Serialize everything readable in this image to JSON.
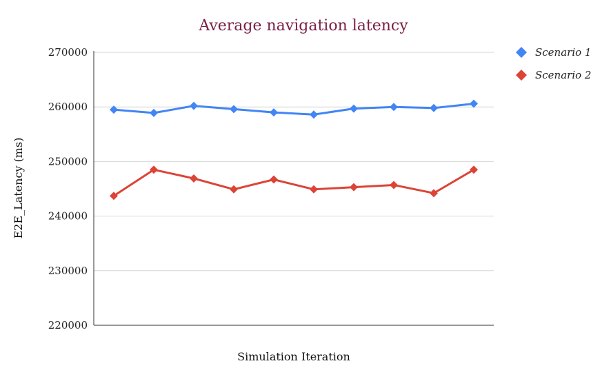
{
  "chart_data": {
    "type": "line",
    "title": "Average navigation latency",
    "xlabel": "Simulation Iteration",
    "ylabel": "E2E_Latency (ms)",
    "ylim": [
      220000,
      270000
    ],
    "yticks": [
      "270000",
      "260000",
      "250000",
      "240000",
      "230000",
      "220000"
    ],
    "ytick_values": [
      270000,
      260000,
      250000,
      240000,
      230000,
      220000
    ],
    "x": [
      1,
      2,
      3,
      4,
      5,
      6,
      7,
      8,
      9,
      10
    ],
    "grid": true,
    "legend_position": "top-right",
    "series": [
      {
        "name": "Scenario 1",
        "color": "#4285f4",
        "marker": "diamond",
        "values": [
          259500,
          258900,
          260200,
          259600,
          259000,
          258600,
          259700,
          260000,
          259800,
          260600
        ]
      },
      {
        "name": "Scenario 2",
        "color": "#db4437",
        "marker": "diamond",
        "values": [
          243700,
          248500,
          246900,
          244900,
          246700,
          244900,
          245300,
          245700,
          244200,
          248500
        ]
      }
    ]
  }
}
